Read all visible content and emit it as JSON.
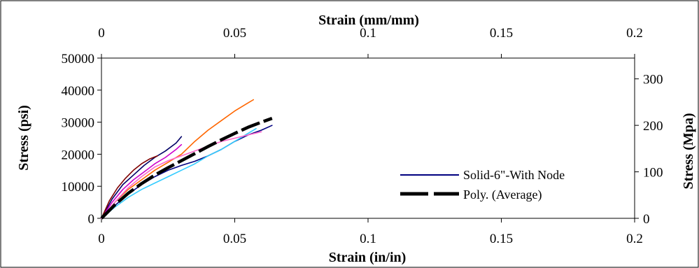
{
  "chart_data": {
    "type": "line",
    "xlabel_bottom": "Strain (in/in)",
    "xlabel_top": "Strain (mm/mm)",
    "ylabel_left": "Stress (psi)",
    "ylabel_right": "Stress (Mpa)",
    "xlim": [
      0,
      0.2
    ],
    "ylim_left": [
      0,
      50000
    ],
    "ylim_right": [
      0,
      344.7
    ],
    "x_ticks": [
      "0",
      "0.05",
      "0.1",
      "0.15",
      "0.2"
    ],
    "x_ticks_top": [
      "0",
      "0.05",
      "0.1",
      "0.15",
      "0.2"
    ],
    "y_ticks_left": [
      "0",
      "10000",
      "20000",
      "30000",
      "40000",
      "50000"
    ],
    "y_ticks_right": [
      "0",
      "100",
      "200",
      "300"
    ],
    "grid": false,
    "legend_position": "bottom-right",
    "series": [
      {
        "name": "Solid-6\"-With Node",
        "color": "#000080",
        "style": "solid",
        "x": [
          0,
          0.005,
          0.01,
          0.015,
          0.02,
          0.025,
          0.03,
          0.035,
          0.04,
          0.045,
          0.05,
          0.055,
          0.06,
          0.064
        ],
        "y": [
          0,
          4000,
          7500,
          10500,
          13000,
          15000,
          16500,
          17800,
          19500,
          21500,
          24000,
          26000,
          27500,
          29000
        ]
      },
      {
        "color": "#ff6600",
        "style": "solid",
        "x": [
          0,
          0.005,
          0.01,
          0.015,
          0.02,
          0.025,
          0.03,
          0.035,
          0.04,
          0.045,
          0.05,
          0.055,
          0.057
        ],
        "y": [
          0,
          5000,
          9000,
          12000,
          15000,
          17500,
          20000,
          24000,
          27500,
          30500,
          33500,
          36000,
          37000
        ]
      },
      {
        "color": "#33ccff",
        "style": "solid",
        "x": [
          0,
          0.005,
          0.01,
          0.015,
          0.02,
          0.025,
          0.03,
          0.035,
          0.04,
          0.045,
          0.05,
          0.055,
          0.058
        ],
        "y": [
          0,
          3500,
          6500,
          9000,
          11000,
          13000,
          15000,
          17000,
          19500,
          21500,
          24000,
          26500,
          28000
        ]
      },
      {
        "color": "#000066",
        "style": "solid",
        "x": [
          0,
          0.004,
          0.008,
          0.012,
          0.016,
          0.02,
          0.024,
          0.028,
          0.03
        ],
        "y": [
          0,
          6000,
          10500,
          13500,
          16500,
          19000,
          21000,
          23500,
          25500
        ]
      },
      {
        "color": "#cc00cc",
        "style": "solid",
        "x": [
          0,
          0.004,
          0.008,
          0.012,
          0.016,
          0.02,
          0.024,
          0.028,
          0.03
        ],
        "y": [
          0,
          5000,
          9000,
          12000,
          14500,
          17000,
          19000,
          21500,
          23000
        ]
      },
      {
        "color": "#800000",
        "style": "solid",
        "x": [
          0,
          0.003,
          0.006,
          0.009,
          0.012,
          0.015,
          0.018,
          0.021
        ],
        "y": [
          0,
          5500,
          9500,
          12500,
          15000,
          17000,
          18500,
          19500
        ]
      },
      {
        "color": "#ff66cc",
        "style": "solid",
        "x": [
          0,
          0.005,
          0.01,
          0.015,
          0.02,
          0.025,
          0.03,
          0.035,
          0.04,
          0.045,
          0.05,
          0.055,
          0.06
        ],
        "y": [
          0,
          5000,
          9500,
          13000,
          16000,
          18000,
          19500,
          21000,
          22500,
          24000,
          25000,
          26000,
          27000
        ]
      },
      {
        "name": "Poly. (Average)",
        "color": "#000000",
        "style": "dashed-thick",
        "x": [
          0,
          0.005,
          0.01,
          0.015,
          0.02,
          0.025,
          0.03,
          0.035,
          0.04,
          0.045,
          0.05,
          0.055,
          0.06,
          0.064
        ],
        "y": [
          0,
          4200,
          7800,
          10800,
          13500,
          15800,
          18000,
          20200,
          22400,
          24500,
          26500,
          28400,
          30000,
          31200
        ]
      }
    ]
  }
}
